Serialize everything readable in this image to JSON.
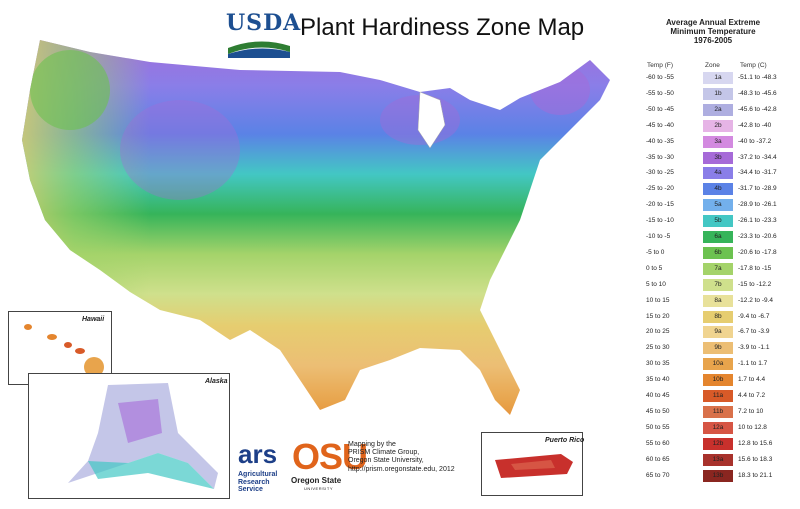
{
  "header": {
    "agency_logo_text": "USDA",
    "title": "Plant Hardiness Zone Map"
  },
  "legend": {
    "title_line1": "Average Annual Extreme",
    "title_line2": "Minimum Temperature",
    "title_line3": "1976-2005",
    "col_temp_f": "Temp (F)",
    "col_zone": "Zone",
    "col_temp_c": "Temp (C)",
    "rows": [
      {
        "temp_f": "-60 to -55",
        "zone": "1a",
        "temp_c": "-51.1 to -48.3",
        "color": "#d7d7f0"
      },
      {
        "temp_f": "-55 to -50",
        "zone": "1b",
        "temp_c": "-48.3 to -45.6",
        "color": "#c4c6e8"
      },
      {
        "temp_f": "-50 to -45",
        "zone": "2a",
        "temp_c": "-45.6 to -42.8",
        "color": "#aeaee0"
      },
      {
        "temp_f": "-45 to -40",
        "zone": "2b",
        "temp_c": "-42.8 to -40",
        "color": "#e6b4e6"
      },
      {
        "temp_f": "-40 to -35",
        "zone": "3a",
        "temp_c": "-40 to -37.2",
        "color": "#d38ae0"
      },
      {
        "temp_f": "-35 to -30",
        "zone": "3b",
        "temp_c": "-37.2 to -34.4",
        "color": "#a66ad8"
      },
      {
        "temp_f": "-30 to -25",
        "zone": "4a",
        "temp_c": "-34.4 to -31.7",
        "color": "#8a7ee8"
      },
      {
        "temp_f": "-25 to -20",
        "zone": "4b",
        "temp_c": "-31.7 to -28.9",
        "color": "#5b82e6"
      },
      {
        "temp_f": "-20 to -15",
        "zone": "5a",
        "temp_c": "-28.9 to -26.1",
        "color": "#73b0ec"
      },
      {
        "temp_f": "-15 to -10",
        "zone": "5b",
        "temp_c": "-26.1 to -23.3",
        "color": "#43c7c4"
      },
      {
        "temp_f": "-10 to -5",
        "zone": "6a",
        "temp_c": "-23.3 to -20.6",
        "color": "#36b45a"
      },
      {
        "temp_f": "-5 to 0",
        "zone": "6b",
        "temp_c": "-20.6 to -17.8",
        "color": "#6cc250"
      },
      {
        "temp_f": "0 to 5",
        "zone": "7a",
        "temp_c": "-17.8 to -15",
        "color": "#a4d36a"
      },
      {
        "temp_f": "5 to 10",
        "zone": "7b",
        "temp_c": "-15 to -12.2",
        "color": "#cfe08c"
      },
      {
        "temp_f": "10 to 15",
        "zone": "8a",
        "temp_c": "-12.2 to -9.4",
        "color": "#e8e19a"
      },
      {
        "temp_f": "15 to 20",
        "zone": "8b",
        "temp_c": "-9.4 to -6.7",
        "color": "#e6cd70"
      },
      {
        "temp_f": "20 to 25",
        "zone": "9a",
        "temp_c": "-6.7 to -3.9",
        "color": "#f0d490"
      },
      {
        "temp_f": "25 to 30",
        "zone": "9b",
        "temp_c": "-3.9 to -1.1",
        "color": "#ecbe74"
      },
      {
        "temp_f": "30 to 35",
        "zone": "10a",
        "temp_c": "-1.1 to 1.7",
        "color": "#e8a44c"
      },
      {
        "temp_f": "35 to 40",
        "zone": "10b",
        "temp_c": "1.7 to 4.4",
        "color": "#e4852e"
      },
      {
        "temp_f": "40 to 45",
        "zone": "11a",
        "temp_c": "4.4 to 7.2",
        "color": "#d85a28"
      },
      {
        "temp_f": "45 to 50",
        "zone": "11b",
        "temp_c": "7.2 to 10",
        "color": "#d9714a"
      },
      {
        "temp_f": "50 to 55",
        "zone": "12a",
        "temp_c": "10 to 12.8",
        "color": "#d65544"
      },
      {
        "temp_f": "55 to 60",
        "zone": "12b",
        "temp_c": "12.8 to 15.6",
        "color": "#c8302c"
      },
      {
        "temp_f": "60 to 65",
        "zone": "13a",
        "temp_c": "15.6 to 18.3",
        "color": "#a8322c"
      },
      {
        "temp_f": "65 to 70",
        "zone": "13b",
        "temp_c": "18.3 to 21.1",
        "color": "#8a2620"
      }
    ]
  },
  "insets": {
    "hawaii": "Hawaii",
    "alaska": "Alaska",
    "puerto_rico": "Puerto Rico"
  },
  "logos": {
    "ars_mark": "ars",
    "ars_line1": "Agricultural",
    "ars_line2": "Research",
    "ars_line3": "Service",
    "osu_mark": "OSU",
    "osu_line1": "Oregon State",
    "osu_line2": "UNIVERSITY"
  },
  "credit": {
    "line1": "Mapping by the",
    "line2": "PRISM Climate Group,",
    "line3": "Oregon State University,",
    "line4": "http://prism.oregonstate.edu, 2012"
  }
}
